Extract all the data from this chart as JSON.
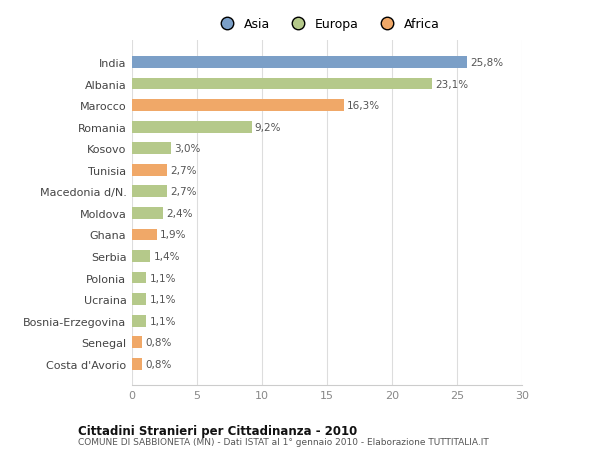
{
  "categories": [
    "Costa d'Avorio",
    "Senegal",
    "Bosnia-Erzegovina",
    "Ucraina",
    "Polonia",
    "Serbia",
    "Ghana",
    "Moldova",
    "Macedonia d/N.",
    "Tunisia",
    "Kosovo",
    "Romania",
    "Marocco",
    "Albania",
    "India"
  ],
  "values": [
    0.8,
    0.8,
    1.1,
    1.1,
    1.1,
    1.4,
    1.9,
    2.4,
    2.7,
    2.7,
    3.0,
    9.2,
    16.3,
    23.1,
    25.8
  ],
  "colors": [
    "#f0a868",
    "#f0a868",
    "#b5c98a",
    "#b5c98a",
    "#b5c98a",
    "#b5c98a",
    "#f0a868",
    "#b5c98a",
    "#b5c98a",
    "#f0a868",
    "#b5c98a",
    "#b5c98a",
    "#f0a868",
    "#b5c98a",
    "#7b9fc7"
  ],
  "labels": [
    "0,8%",
    "0,8%",
    "1,1%",
    "1,1%",
    "1,1%",
    "1,4%",
    "1,9%",
    "2,4%",
    "2,7%",
    "2,7%",
    "3,0%",
    "9,2%",
    "16,3%",
    "23,1%",
    "25,8%"
  ],
  "legend": [
    {
      "label": "Asia",
      "color": "#7b9fc7"
    },
    {
      "label": "Europa",
      "color": "#b5c98a"
    },
    {
      "label": "Africa",
      "color": "#f0a868"
    }
  ],
  "xlim": [
    0,
    30
  ],
  "xticks": [
    0,
    5,
    10,
    15,
    20,
    25,
    30
  ],
  "title": "Cittadini Stranieri per Cittadinanza - 2010",
  "subtitle": "COMUNE DI SABBIONETA (MN) - Dati ISTAT al 1° gennaio 2010 - Elaborazione TUTTITALIA.IT",
  "bg_color": "#ffffff",
  "plot_bg_color": "#ffffff",
  "bar_height": 0.55,
  "label_fontsize": 7.5,
  "ytick_fontsize": 8,
  "xtick_fontsize": 8
}
